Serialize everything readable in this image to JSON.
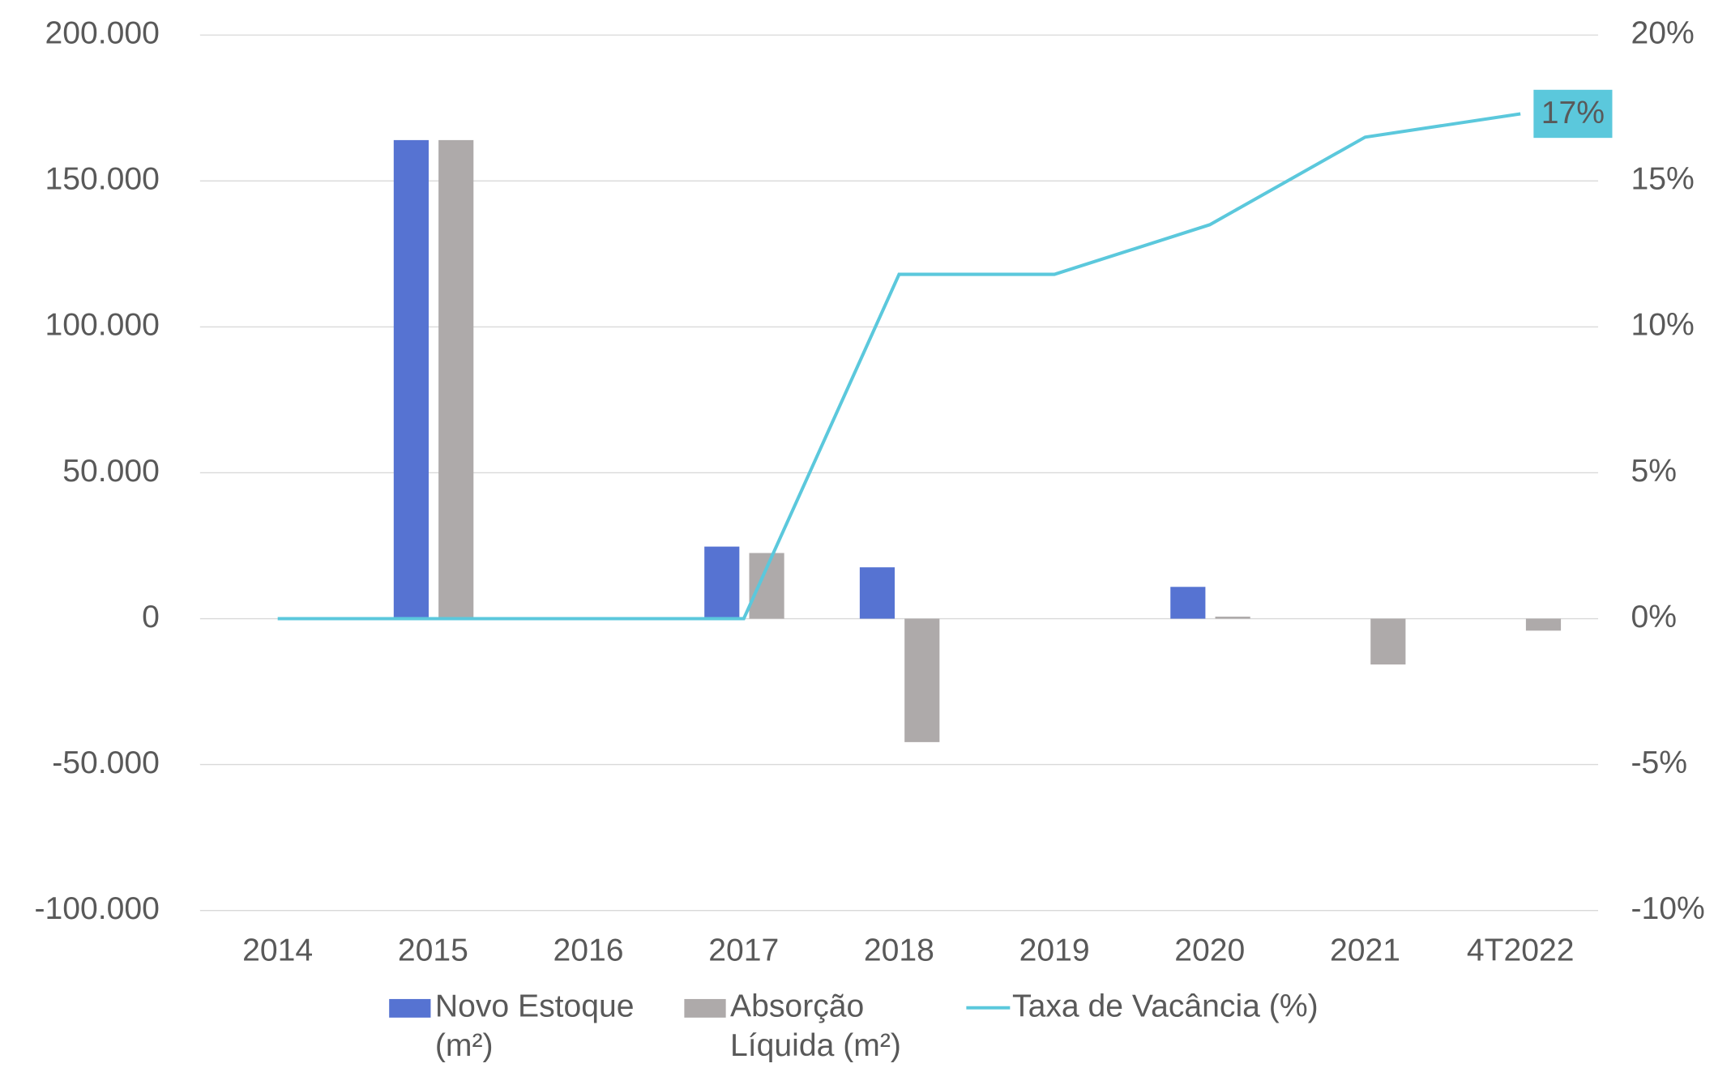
{
  "chart_data": {
    "type": "bar",
    "categories": [
      "2014",
      "2015",
      "2016",
      "2017",
      "2018",
      "2019",
      "2020",
      "2021",
      "4T2022"
    ],
    "series": [
      {
        "name": "Novo Estoque (m²)",
        "color": "#5673d2",
        "values": [
          0,
          164000,
          0,
          24700,
          17600,
          0,
          10900,
          0,
          0
        ]
      },
      {
        "name": "Absorção Líquida (m²)",
        "color": "#aeaaaa",
        "values": [
          0,
          164000,
          0,
          22500,
          -42300,
          0,
          700,
          -15700,
          -4100
        ]
      },
      {
        "name": "Taxa de Vacância (%)",
        "type": "line",
        "axis": "y2",
        "color": "#5bc8dc",
        "values": [
          0,
          0,
          0,
          0,
          11.8,
          11.8,
          13.5,
          16.5,
          17.3
        ],
        "value_labels": [
          null,
          null,
          null,
          null,
          null,
          null,
          null,
          null,
          "17%"
        ]
      }
    ],
    "ylim": [
      -100000,
      200000
    ],
    "yticks": [
      {
        "value": -100000,
        "label": "-100.000"
      },
      {
        "value": -50000,
        "label": "-50.000"
      },
      0,
      {
        "value": 50000,
        "label": "50.000"
      },
      {
        "value": 100000,
        "label": "100.000"
      },
      {
        "value": 150000,
        "label": "150.000"
      },
      {
        "value": 200000,
        "label": "200.000"
      }
    ],
    "y2lim": [
      -10,
      20
    ],
    "y2ticks": [
      {
        "value": -10,
        "label": "-10%"
      },
      {
        "value": -5,
        "label": "-5%"
      },
      {
        "value": 0,
        "label": "0%"
      },
      {
        "value": 5,
        "label": "5%"
      },
      {
        "value": 10,
        "label": "10%"
      },
      {
        "value": 15,
        "label": "15%"
      },
      {
        "value": 20,
        "label": "20%"
      }
    ],
    "grid": true,
    "legend": "bottom"
  }
}
